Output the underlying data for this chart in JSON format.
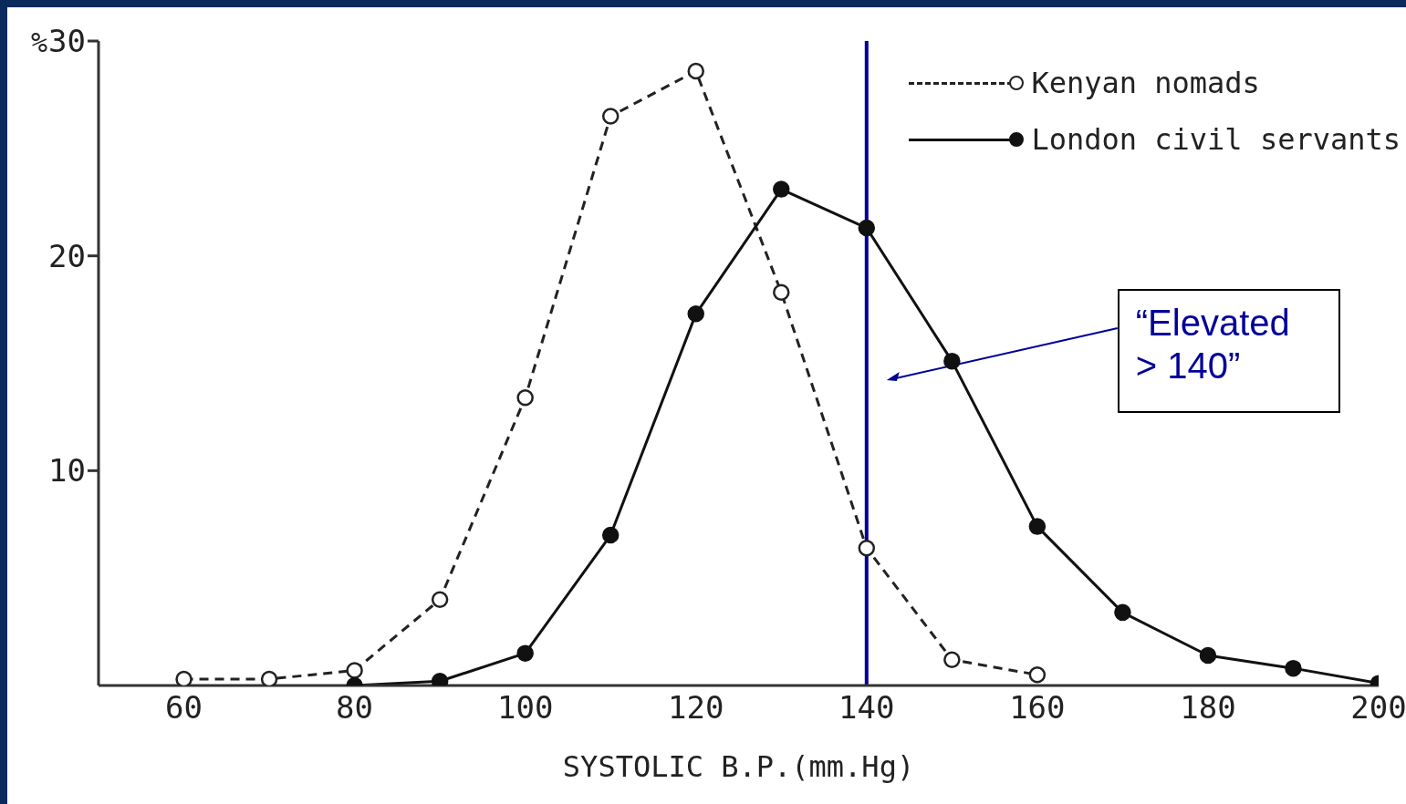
{
  "chart_data": {
    "type": "line",
    "xlabel": "SYSTOLIC B.P.(mm.Hg)",
    "ylabel": "%",
    "xlim": [
      50,
      200
    ],
    "xticks": [
      60,
      80,
      100,
      120,
      140,
      160,
      180,
      200
    ],
    "ylim": [
      0,
      30
    ],
    "yticks": [
      10,
      20,
      30
    ],
    "grid": false,
    "legend": "top right",
    "series": [
      {
        "name": "Kenyan nomads",
        "color": "#222222",
        "line_style": "dashed",
        "marker": "circle",
        "x": [
          60,
          70,
          80,
          90,
          100,
          110,
          120,
          130,
          140,
          150,
          160
        ],
        "values": [
          0.3,
          0.3,
          0.7,
          4.0,
          13.4,
          26.5,
          28.6,
          18.3,
          6.4,
          1.2,
          0.5
        ]
      },
      {
        "name": "London civil servants",
        "color": "#111111",
        "line_style": "solid",
        "marker": "circle",
        "x": [
          80,
          90,
          100,
          110,
          120,
          130,
          140,
          150,
          160,
          170,
          180,
          190,
          200
        ],
        "values": [
          0,
          0.2,
          1.5,
          7.0,
          17.3,
          23.1,
          21.3,
          15.1,
          7.4,
          3.4,
          1.4,
          0.8,
          0.1
        ]
      }
    ],
    "ref_lines": [
      {
        "axis": "x",
        "value": 140,
        "color": "#000099",
        "label": "“Elevated > 140”"
      }
    ]
  }
}
